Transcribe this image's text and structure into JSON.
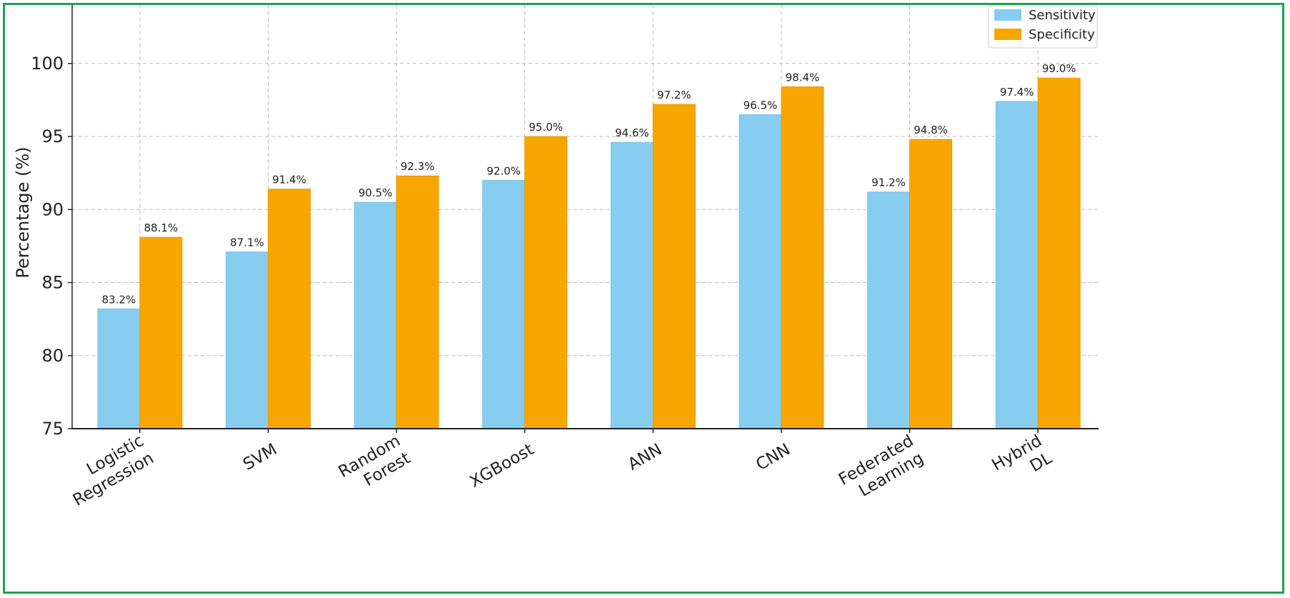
{
  "chart_data": {
    "type": "bar",
    "categories": [
      "Logistic Regression",
      "SVM",
      "Random Forest",
      "XGBoost",
      "ANN",
      "CNN",
      "Federated Learning",
      "Hybrid DL"
    ],
    "series": [
      {
        "name": "Sensitivity",
        "values": [
          83.2,
          87.1,
          90.5,
          92.0,
          94.6,
          96.5,
          91.2,
          97.4
        ],
        "color": "#87cdf0"
      },
      {
        "name": "Specificity",
        "values": [
          88.1,
          91.4,
          92.3,
          95.0,
          97.2,
          98.4,
          94.8,
          99.0
        ],
        "color": "#f7a600"
      }
    ],
    "data_labels": [
      [
        "83.2%",
        "87.1%",
        "90.5%",
        "92.0%",
        "94.6%",
        "96.5%",
        "91.2%",
        "97.4%"
      ],
      [
        "88.1%",
        "91.4%",
        "92.3%",
        "95.0%",
        "97.2%",
        "98.4%",
        "94.8%",
        "99.0%"
      ]
    ],
    "title": "",
    "xlabel": "",
    "ylabel": "Percentage (%)",
    "ylim": [
      75,
      104
    ],
    "yticks": [
      75,
      80,
      85,
      90,
      95,
      100
    ],
    "grid": true,
    "legend_position": "top-right"
  }
}
